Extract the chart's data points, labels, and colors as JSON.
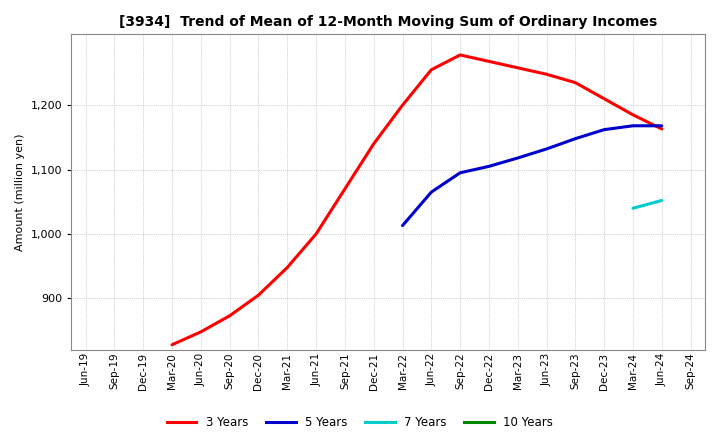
{
  "title": "[3934]  Trend of Mean of 12-Month Moving Sum of Ordinary Incomes",
  "ylabel": "Amount (million yen)",
  "background_color": "#ffffff",
  "grid_color": "#aaaaaa",
  "ylim": [
    820,
    1310
  ],
  "yticks": [
    900,
    1000,
    1100,
    1200
  ],
  "series": {
    "3years": {
      "color": "#ff0000",
      "label": "3 Years",
      "x": [
        "Mar-20",
        "Jun-20",
        "Sep-20",
        "Dec-20",
        "Mar-21",
        "Jun-21",
        "Sep-21",
        "Dec-21",
        "Mar-22",
        "Jun-22",
        "Sep-22",
        "Dec-22",
        "Mar-23",
        "Jun-23",
        "Sep-23",
        "Dec-23",
        "Mar-24",
        "Jun-24"
      ],
      "y": [
        828,
        848,
        873,
        905,
        948,
        1000,
        1070,
        1140,
        1200,
        1255,
        1278,
        1268,
        1258,
        1248,
        1235,
        1210,
        1185,
        1163
      ]
    },
    "5years": {
      "color": "#0000cc",
      "label": "5 Years",
      "x": [
        "Mar-22",
        "Jun-22",
        "Sep-22",
        "Dec-22",
        "Mar-23",
        "Jun-23",
        "Sep-23",
        "Dec-23",
        "Mar-24",
        "Jun-24"
      ],
      "y": [
        1013,
        1065,
        1095,
        1105,
        1118,
        1132,
        1148,
        1162,
        1168,
        1168
      ]
    },
    "7years": {
      "color": "#00cccc",
      "label": "7 Years",
      "x": [
        "Mar-24",
        "Jun-24"
      ],
      "y": [
        1040,
        1052
      ]
    },
    "10years": {
      "color": "#008800",
      "label": "10 Years",
      "x": [],
      "y": []
    }
  },
  "xtick_labels": [
    "Jun-19",
    "Sep-19",
    "Dec-19",
    "Mar-20",
    "Jun-20",
    "Sep-20",
    "Dec-20",
    "Mar-21",
    "Jun-21",
    "Sep-21",
    "Dec-21",
    "Mar-22",
    "Jun-22",
    "Sep-22",
    "Dec-22",
    "Mar-23",
    "Jun-23",
    "Sep-23",
    "Dec-23",
    "Mar-24",
    "Jun-24",
    "Sep-24"
  ],
  "legend_labels": [
    "3 Years",
    "5 Years",
    "7 Years",
    "10 Years"
  ],
  "legend_colors": [
    "#ff0000",
    "#0000cc",
    "#00cccc",
    "#008800"
  ]
}
